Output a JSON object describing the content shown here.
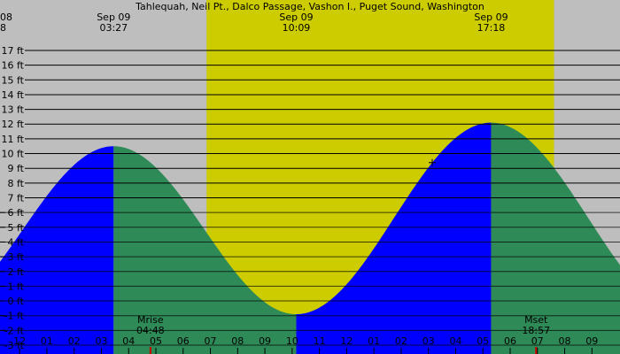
{
  "chart_data": {
    "type": "area",
    "title": "Tahlequah, Neil Pt., Dalco Passage, Vashon I., Puget Sound, Washington",
    "unit": "ft",
    "yticks": [
      -3,
      -2,
      -1,
      0,
      1,
      2,
      3,
      4,
      5,
      6,
      7,
      8,
      9,
      10,
      11,
      12,
      13,
      14,
      15,
      16,
      17
    ],
    "ylim": [
      -3.6,
      17.6
    ],
    "xlim": [
      -0.72,
      22.03
    ],
    "daylight": {
      "start": 6.86,
      "end": 19.61
    },
    "tide_events": [
      {
        "type": "high",
        "time": 3.45,
        "height": 10.5,
        "date_label": "Sep 09",
        "time_label": "03:27"
      },
      {
        "type": "low",
        "time": 10.15,
        "height": -0.9,
        "date_label": "Sep 09",
        "time_label": "10:09"
      },
      {
        "type": "high",
        "time": 17.3,
        "height": 12.1,
        "date_label": "Sep 09",
        "time_label": "17:18"
      }
    ],
    "edge_labels": {
      "date": "08",
      "time": "8"
    },
    "moon_events": [
      {
        "name": "Mrise",
        "time_label": "04:48",
        "time": 4.8
      },
      {
        "name": "Mset",
        "time_label": "18:57",
        "time": 18.95
      }
    ],
    "hour_labels": [
      "11",
      "12",
      "01",
      "02",
      "03",
      "04",
      "05",
      "06",
      "07",
      "08",
      "09",
      "10",
      "11",
      "12",
      "01",
      "02",
      "03",
      "04",
      "05",
      "06",
      "07",
      "08",
      "09"
    ],
    "hour_ticks_start": -1,
    "marker_time": 15.14,
    "colors": {
      "background": "#bebebe",
      "daylight": "#cccc00",
      "rising": "#0000ff",
      "falling": "#2e8b57",
      "grid": "#000000",
      "moon_tick": "#cc0000"
    }
  }
}
